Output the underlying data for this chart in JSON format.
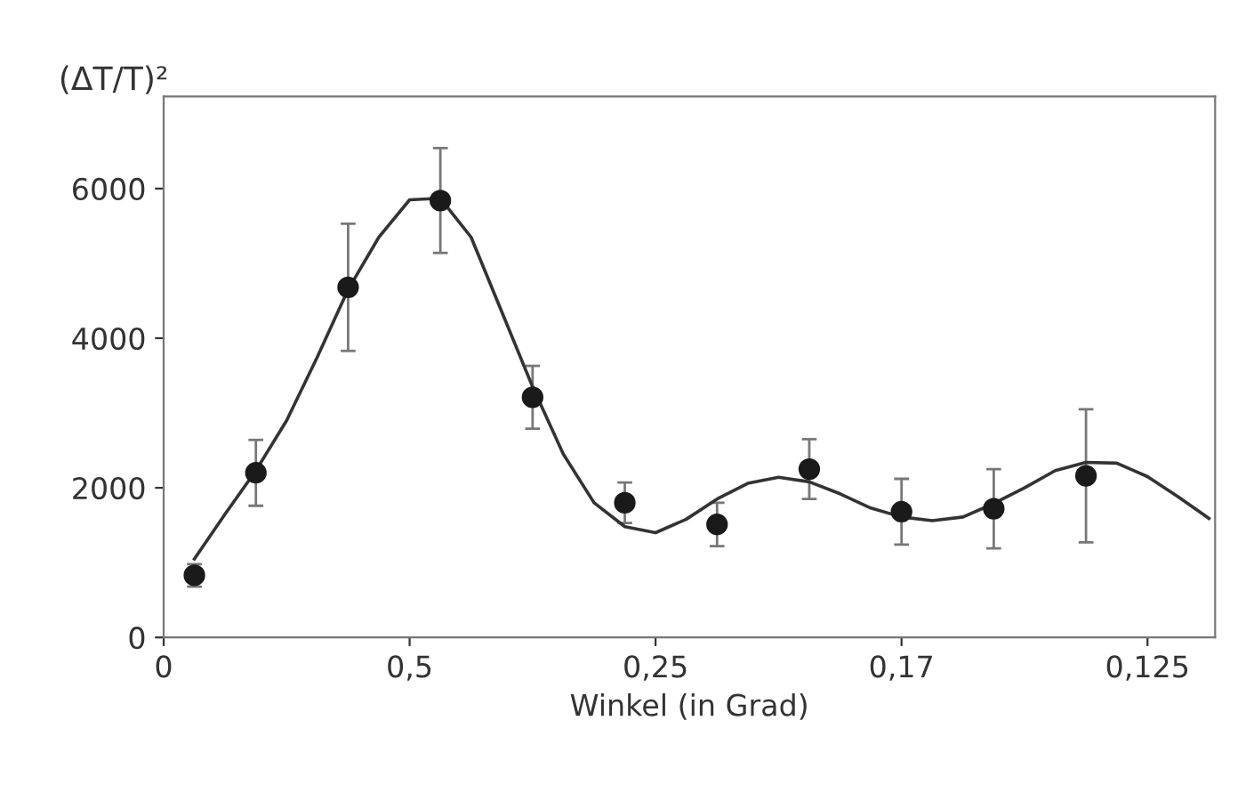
{
  "chart_data": {
    "type": "scatter",
    "ylabel": "(ΔT/T)²",
    "xlabel": "Winkel (in Grad)",
    "ylim": [
      0,
      7230
    ],
    "categories": [
      "0",
      null,
      null,
      null,
      null,
      null,
      null,
      null,
      "0,5",
      null,
      null,
      null,
      null,
      null,
      null,
      null,
      "0,25",
      null,
      null,
      null,
      null,
      null,
      null,
      null,
      "0,17",
      null,
      null,
      null,
      null,
      null,
      null,
      null,
      "0,125",
      null,
      null
    ],
    "yticks": [
      0,
      2000,
      4000,
      6000
    ],
    "grid": false,
    "legend": false,
    "series": [
      {
        "color": "#1a1a1a",
        "marker": "circle",
        "values": [
          null,
          830,
          null,
          2200,
          null,
          null,
          4680,
          null,
          null,
          5840,
          null,
          null,
          3210,
          null,
          null,
          1800,
          null,
          null,
          1510,
          null,
          null,
          2250,
          null,
          null,
          1680,
          null,
          null,
          1720,
          null,
          null,
          2160,
          null,
          null,
          null,
          null
        ],
        "errors": [
          null,
          150,
          null,
          440,
          null,
          null,
          850,
          null,
          null,
          700,
          null,
          null,
          420,
          null,
          null,
          270,
          null,
          null,
          290,
          null,
          null,
          400,
          null,
          null,
          440,
          null,
          null,
          530,
          null,
          null,
          890,
          null,
          null,
          null,
          null
        ]
      },
      {
        "type": "line",
        "color": "#333333",
        "marker": "none",
        "line_style": "solid",
        "values": [
          null,
          1050,
          1650,
          2230,
          2900,
          3750,
          4650,
          5350,
          5850,
          5870,
          5350,
          4350,
          3350,
          2450,
          1800,
          1480,
          1400,
          1580,
          1850,
          2060,
          2140,
          2080,
          1920,
          1730,
          1610,
          1560,
          1610,
          1790,
          2000,
          2230,
          2340,
          2330,
          2150,
          1880,
          1590
        ]
      }
    ]
  }
}
